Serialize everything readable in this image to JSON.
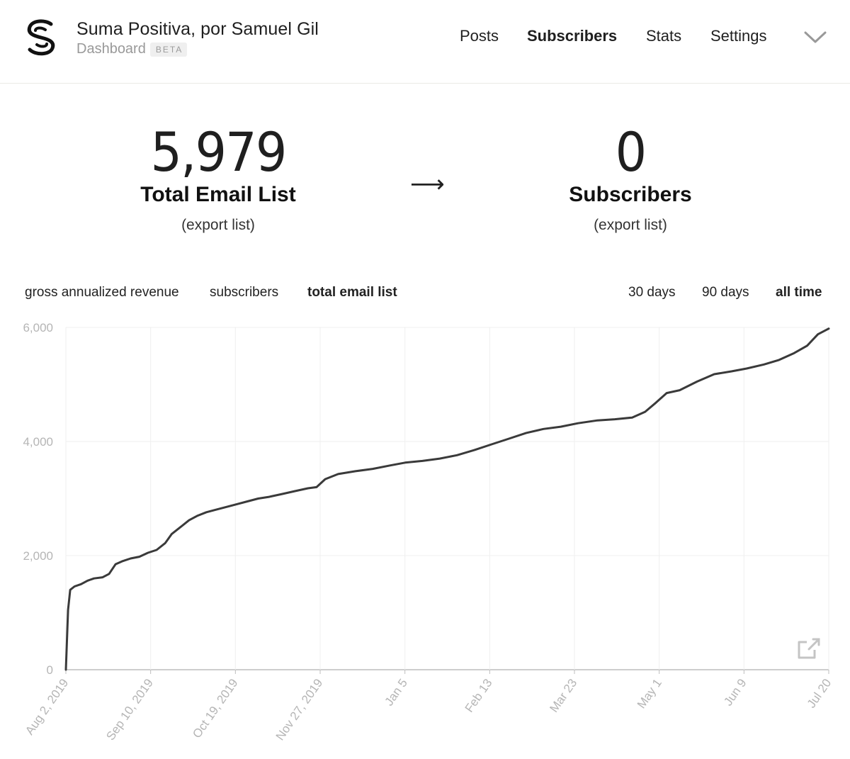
{
  "header": {
    "title": "Suma Positiva, por Samuel Gil",
    "subtitle": "Dashboard",
    "badge": "BETA",
    "nav": [
      {
        "label": "Posts",
        "active": false
      },
      {
        "label": "Subscribers",
        "active": true
      },
      {
        "label": "Stats",
        "active": false
      },
      {
        "label": "Settings",
        "active": false
      }
    ],
    "menu_icon": "chevron-down-icon",
    "logo_icon": "substack-s-logo-icon"
  },
  "stats": {
    "total": {
      "value": "5,979",
      "label": "Total Email List",
      "link": "(export list)"
    },
    "arrow": "⟶",
    "subscribers": {
      "value": "0",
      "label": "Subscribers",
      "link": "(export list)"
    }
  },
  "metric_tabs": [
    {
      "label": "gross annualized revenue",
      "active": false
    },
    {
      "label": "subscribers",
      "active": false
    },
    {
      "label": "total email list",
      "active": true
    }
  ],
  "range_tabs": [
    {
      "label": "30 days",
      "active": false
    },
    {
      "label": "90 days",
      "active": false
    },
    {
      "label": "all time",
      "active": true
    }
  ],
  "chart_data": {
    "type": "line",
    "ylim": [
      0,
      6000
    ],
    "yticks": [
      "0",
      "2,000",
      "4,000",
      "6,000"
    ],
    "ytick_values": [
      0,
      2000,
      4000,
      6000
    ],
    "xticks": [
      "Aug 2, 2019",
      "Sep 10, 2019",
      "Oct 19, 2019",
      "Nov 27, 2019",
      "Jan 5",
      "Feb 13",
      "Mar 23",
      "May 1",
      "Jun 9",
      "Jul 20"
    ],
    "xlim": [
      "2019-08-02",
      "2020-07-20"
    ],
    "grid": true,
    "series": [
      {
        "x": [
          "2019-08-02",
          "2019-08-03",
          "2019-08-04",
          "2019-08-06",
          "2019-08-09",
          "2019-08-12",
          "2019-08-15",
          "2019-08-19",
          "2019-08-22",
          "2019-08-25",
          "2019-08-28",
          "2019-09-01",
          "2019-09-05",
          "2019-09-09",
          "2019-09-13",
          "2019-09-17",
          "2019-09-20",
          "2019-09-24",
          "2019-09-28",
          "2019-10-02",
          "2019-10-06",
          "2019-10-10",
          "2019-10-15",
          "2019-10-20",
          "2019-10-25",
          "2019-10-30",
          "2019-11-04",
          "2019-11-10",
          "2019-11-16",
          "2019-11-22",
          "2019-11-26",
          "2019-11-30",
          "2019-12-06",
          "2019-12-14",
          "2019-12-22",
          "2019-12-30",
          "2020-01-06",
          "2020-01-14",
          "2020-01-22",
          "2020-01-30",
          "2020-02-07",
          "2020-02-15",
          "2020-02-23",
          "2020-03-02",
          "2020-03-10",
          "2020-03-18",
          "2020-03-26",
          "2020-04-04",
          "2020-04-12",
          "2020-04-20",
          "2020-04-26",
          "2020-05-01",
          "2020-05-06",
          "2020-05-12",
          "2020-05-20",
          "2020-05-28",
          "2020-06-05",
          "2020-06-12",
          "2020-06-20",
          "2020-06-27",
          "2020-07-04",
          "2020-07-10",
          "2020-07-15",
          "2020-07-20"
        ],
        "values": [
          0,
          1050,
          1400,
          1460,
          1500,
          1560,
          1600,
          1620,
          1680,
          1850,
          1900,
          1950,
          1980,
          2050,
          2100,
          2220,
          2380,
          2500,
          2620,
          2700,
          2760,
          2800,
          2850,
          2900,
          2950,
          3000,
          3030,
          3080,
          3130,
          3180,
          3200,
          3340,
          3430,
          3480,
          3520,
          3580,
          3630,
          3660,
          3700,
          3760,
          3850,
          3950,
          4050,
          4150,
          4220,
          4260,
          4320,
          4370,
          4390,
          4420,
          4520,
          4680,
          4850,
          4900,
          5050,
          5180,
          5230,
          5280,
          5350,
          5430,
          5550,
          5680,
          5880,
          5979
        ]
      }
    ]
  }
}
